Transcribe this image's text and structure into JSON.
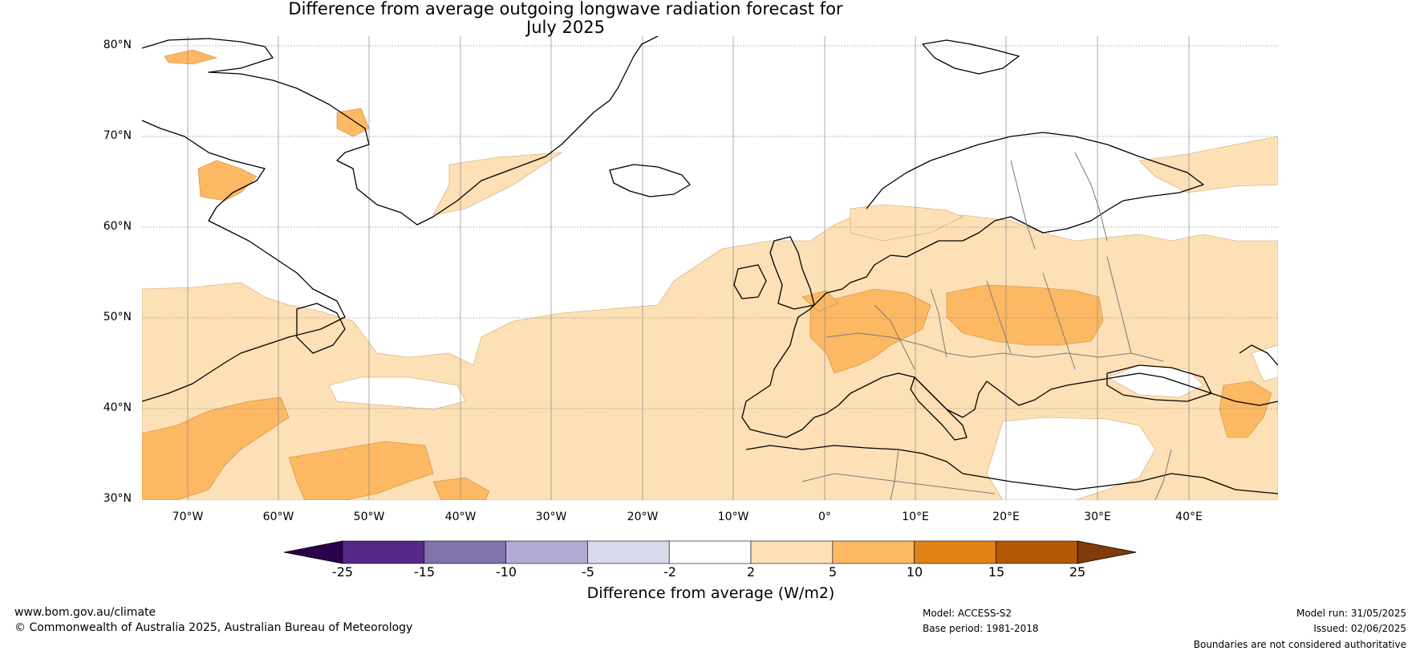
{
  "title_line1": "Difference from average outgoing longwave radiation forecast for",
  "title_line2": "July 2025",
  "latitudes": [
    "80°N",
    "70°N",
    "60°N",
    "50°N",
    "40°N",
    "30°N"
  ],
  "longitudes": [
    "70°W",
    "60°W",
    "50°W",
    "40°W",
    "30°W",
    "20°W",
    "10°W",
    "0°",
    "10°E",
    "20°E",
    "30°E",
    "40°E"
  ],
  "colorbar": {
    "ticks": [
      "-25",
      "-15",
      "-10",
      "-5",
      "-2",
      "2",
      "5",
      "10",
      "15",
      "25"
    ],
    "colors": [
      "#2d004b",
      "#542788",
      "#8073ac",
      "#b2abd2",
      "#d8daeb",
      "#ffffff",
      "#fde0b5",
      "#fdb863",
      "#e08214",
      "#b35806",
      "#7f3b08"
    ],
    "label": "Difference from average (W/m2)"
  },
  "footer": {
    "website": "www.bom.gov.au/climate",
    "copyright": "© Commonwealth of Australia 2025, Australian Bureau of Meteorology",
    "model": "Model: ACCESS-S2",
    "base_period": "Base period: 1981-2018",
    "model_run": "Model run: 31/05/2025",
    "issued": "Issued: 02/06/2025",
    "disclaimer": "Boundaries are not considered authoritative"
  }
}
